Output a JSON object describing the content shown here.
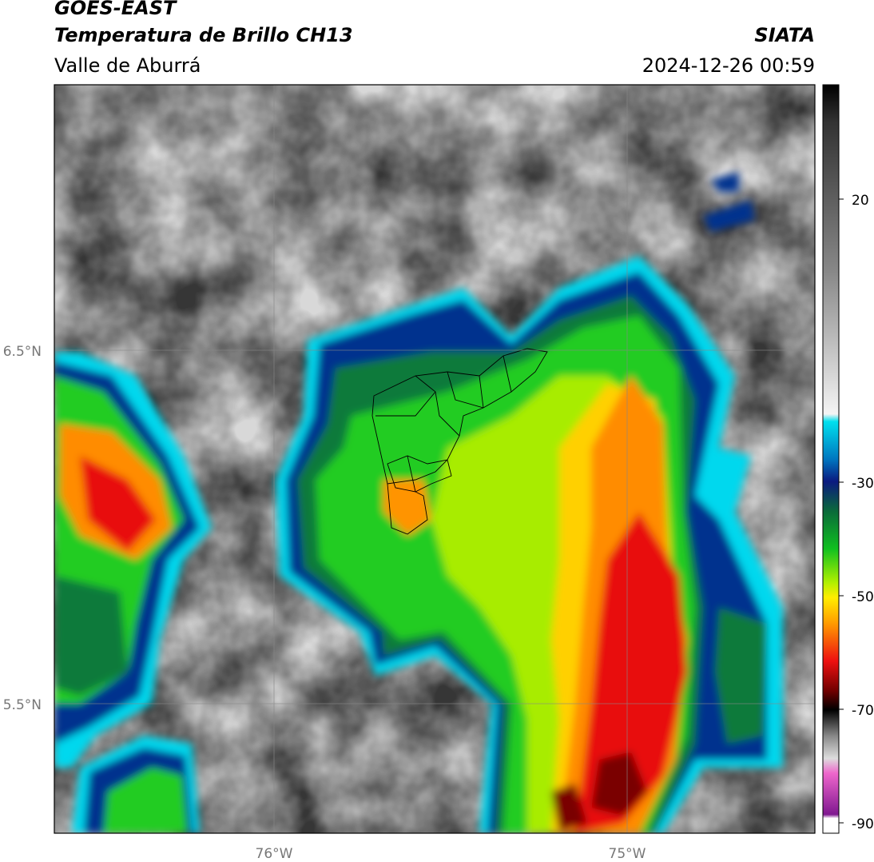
{
  "header": {
    "title": "GOES-EAST",
    "subtitle": "Temperatura de Brillo CH13",
    "region": "Valle de Aburrá",
    "source": "SIATA",
    "datetime": "2024-12-26 00:59"
  },
  "map": {
    "lat_labels": [
      "6.5°N",
      "5.5°N"
    ],
    "lon_labels": [
      "76°W",
      "75°W"
    ]
  },
  "colorbar": {
    "ticks": [
      "20",
      "-30",
      "-50",
      "-70",
      "-90"
    ]
  }
}
